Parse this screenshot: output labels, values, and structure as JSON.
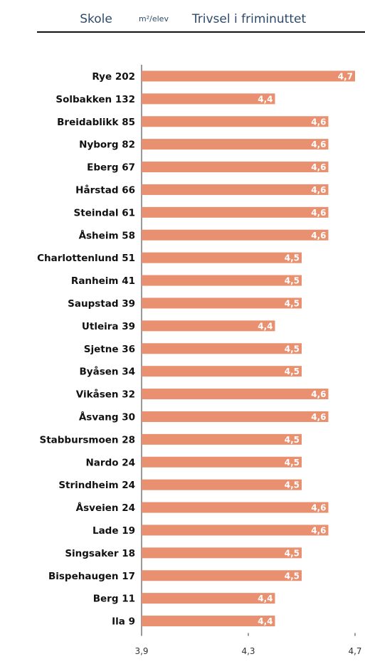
{
  "header": {
    "col1": "Skole",
    "unit": "m²/elev",
    "col2": "Trivsel i friminuttet"
  },
  "chart_data": {
    "type": "hbar",
    "categories": [
      "Rye 202",
      "Solbakken 132",
      "Breidablikk 85",
      "Nyborg 82",
      "Eberg 67",
      "Hårstad 66",
      "Steindal 61",
      "Åsheim 58",
      "Charlottenlund 51",
      "Ranheim 41",
      "Saupstad 39",
      "Utleira 39",
      "Sjetne 36",
      "Byåsen 34",
      "Vikåsen 32",
      "Åsvang 30",
      "Stabbursmoen 28",
      "Nardo 24",
      "Strindheim 24",
      "Åsveien 24",
      "Lade 19",
      "Singsaker 18",
      "Bispehaugen 17",
      "Berg 11",
      "Ila 9"
    ],
    "values": [
      4.7,
      4.4,
      4.6,
      4.6,
      4.6,
      4.6,
      4.6,
      4.6,
      4.5,
      4.5,
      4.5,
      4.4,
      4.5,
      4.5,
      4.6,
      4.6,
      4.5,
      4.5,
      4.5,
      4.6,
      4.6,
      4.5,
      4.5,
      4.4,
      4.4
    ],
    "value_labels": [
      "4,7",
      "4,4",
      "4,6",
      "4,6",
      "4,6",
      "4,6",
      "4,6",
      "4,6",
      "4,5",
      "4,5",
      "4,5",
      "4,4",
      "4,5",
      "4,5",
      "4,6",
      "4,6",
      "4,5",
      "4,5",
      "4,5",
      "4,6",
      "4,6",
      "4,5",
      "4,5",
      "4,4",
      "4,4"
    ],
    "color": "#e8906f",
    "xlim": [
      3.9,
      4.7
    ],
    "xticks": [
      {
        "value": 3.9,
        "label": "3,9"
      },
      {
        "value": 4.3,
        "label": "4,3"
      },
      {
        "value": 4.7,
        "label": "4,7"
      }
    ]
  }
}
